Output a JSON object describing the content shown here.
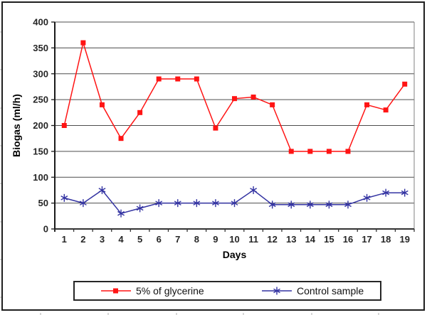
{
  "figure": {
    "background": "#ffffff",
    "border_color": "#1f1f1f"
  },
  "chart_data": {
    "type": "line",
    "title": "",
    "xlabel": "Days",
    "ylabel": "Biogas (ml/h)",
    "x": [
      1,
      2,
      3,
      4,
      5,
      6,
      7,
      8,
      9,
      10,
      11,
      12,
      13,
      14,
      15,
      16,
      17,
      18,
      19
    ],
    "xtick_labels": [
      "1",
      "2",
      "3",
      "4",
      "5",
      "6",
      "7",
      "8",
      "9",
      "10",
      "11",
      "12",
      "13",
      "14",
      "15",
      "16",
      "17",
      "18",
      "19"
    ],
    "ytick_labels": [
      "0",
      "50",
      "100",
      "150",
      "200",
      "250",
      "300",
      "350",
      "400"
    ],
    "ylim": [
      0,
      400
    ],
    "ytick_interval": 50,
    "grid": true,
    "legend_position": "bottom",
    "series": [
      {
        "name": "5% of glycerine",
        "color": "#ff1414",
        "marker": "square",
        "values": [
          200,
          360,
          240,
          175,
          225,
          290,
          290,
          290,
          195,
          252,
          255,
          240,
          150,
          150,
          150,
          150,
          240,
          230,
          280
        ]
      },
      {
        "name": "Control sample",
        "color": "#3333a2",
        "marker": "asterisk",
        "values": [
          60,
          50,
          75,
          30,
          40,
          50,
          50,
          50,
          50,
          50,
          75,
          47,
          47,
          47,
          47,
          47,
          60,
          70,
          70
        ]
      }
    ],
    "colors": {
      "gridline": "#4d4d4d",
      "axis": "#1a1a1a",
      "tick_label": "#262626"
    }
  }
}
